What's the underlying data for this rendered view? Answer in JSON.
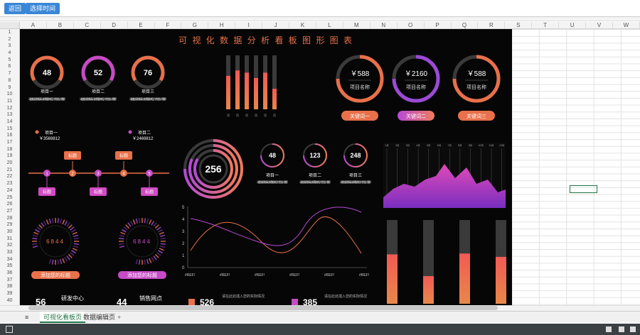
{
  "toolbar": {
    "back": "返回",
    "select_time": "选择时间"
  },
  "columns": [
    "A",
    "B",
    "C",
    "D",
    "E",
    "F",
    "G",
    "H",
    "I",
    "J",
    "K",
    "L",
    "M",
    "N",
    "O",
    "P",
    "Q",
    "R",
    "S",
    "T",
    "U",
    "V",
    "W"
  ],
  "rows": [
    "1",
    "2",
    "3",
    "4",
    "5",
    "6",
    "7",
    "8",
    "9",
    "10",
    "11",
    "12",
    "13",
    "14",
    "15",
    "16",
    "17",
    "18",
    "19",
    "20",
    "21",
    "22",
    "23",
    "24",
    "25",
    "26",
    "27",
    "28",
    "29",
    "30",
    "31",
    "32",
    "33",
    "34",
    "35",
    "36",
    "37",
    "38",
    "39",
    "40"
  ],
  "dashboard": {
    "title": "可 视 化 数 据 分 析 看 板 图 形 图 表",
    "gauges": [
      {
        "value": "48",
        "label": "项目一"
      },
      {
        "value": "52",
        "label": "项目二"
      },
      {
        "value": "76",
        "label": "项目三"
      }
    ],
    "gauge_desc": "请在此处插入您的实际情况，输入您的标题文本内容，文字不宜太多，方便理解",
    "money_items": [
      {
        "label": "项目一",
        "value": "￥3569812"
      },
      {
        "label": "项目二",
        "value": "￥2469812"
      }
    ],
    "tag_label": "标题",
    "timeline": [
      "1",
      "2",
      "3",
      "4",
      "5"
    ],
    "price_rings": [
      {
        "value": "￥588",
        "label": "项目名称"
      },
      {
        "value": "￥2160",
        "label": "项目名称"
      },
      {
        "value": "￥588",
        "label": "项目名称"
      }
    ],
    "keywords": [
      "关键词一",
      "关键词二",
      "关键词三"
    ],
    "big_ring": "256",
    "small_rings": [
      {
        "value": "48",
        "label": "项目一"
      },
      {
        "value": "123",
        "label": "项目二"
      },
      {
        "value": "248",
        "label": "项目三"
      }
    ],
    "dial_values": [
      "6844",
      "6844"
    ],
    "dial_labels": [
      "添加您的标题",
      "添加您的标题"
    ],
    "bottom": [
      {
        "value": "56",
        "label": "研发中心"
      },
      {
        "value": "44",
        "label": "销售网点"
      },
      {
        "value": "526",
        "label": "请在此处插入您的实际情况"
      },
      {
        "value": "385",
        "label": "请在此处插入您的实际情况"
      }
    ],
    "area_ticks": [
      "1月",
      "2月",
      "3月",
      "4月",
      "5月",
      "6月",
      "7月",
      "8月",
      "9月",
      "10月",
      "11月",
      "12月"
    ]
  },
  "line_chart": {
    "yticks": [
      "5",
      "4",
      "3",
      "2",
      "1",
      "0"
    ],
    "xticks": [
      "#REF!",
      "#REF!",
      "#REF!",
      "#REF!",
      "#REF!",
      "#REF!"
    ]
  },
  "sheet_tabs": [
    "可视化看板页",
    "数据编辑页"
  ],
  "colors": {
    "orange": "#e8704a",
    "magenta": "#d24bc4",
    "purple": "#7b3fb8",
    "excel_green": "#217346"
  }
}
